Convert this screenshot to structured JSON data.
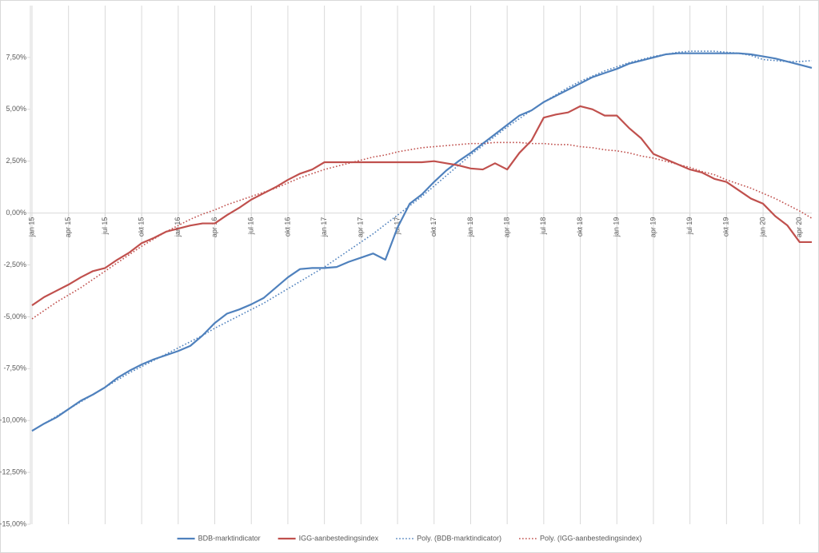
{
  "chart_data": {
    "type": "line",
    "categories": [
      "jan 15",
      null,
      null,
      "apr 15",
      null,
      null,
      "jul 15",
      null,
      null,
      "okt 15",
      null,
      null,
      "jan 16",
      null,
      null,
      "apr 16",
      null,
      null,
      "jul 16",
      null,
      null,
      "okt 16",
      null,
      null,
      "jan 17",
      null,
      null,
      "apr 17",
      null,
      null,
      "jul 17",
      null,
      null,
      "okt 17",
      null,
      null,
      "jan 18",
      null,
      null,
      "apr 18",
      null,
      null,
      "jul 18",
      null,
      null,
      "okt 18",
      null,
      null,
      "jan 19",
      null,
      null,
      "apr 19",
      null,
      null,
      "jul 19",
      null,
      null,
      "okt 19",
      null,
      null,
      "jan 20",
      null,
      null,
      "apr 20",
      null
    ],
    "series": [
      {
        "name": "BDB-marktindicator",
        "color": "#4f81bd",
        "dash": false,
        "values": [
          -10.5,
          -10.15,
          -9.85,
          -9.45,
          -9.05,
          -8.75,
          -8.4,
          -7.95,
          -7.6,
          -7.3,
          -7.05,
          -6.85,
          -6.65,
          -6.4,
          -5.9,
          -5.3,
          -4.85,
          -4.65,
          -4.4,
          -4.1,
          -3.6,
          -3.1,
          -2.7,
          -2.65,
          -2.65,
          -2.6,
          -2.35,
          -2.15,
          -1.95,
          -2.25,
          -0.7,
          0.45,
          0.9,
          1.5,
          2.05,
          2.5,
          2.9,
          3.35,
          3.8,
          4.25,
          4.7,
          4.95,
          5.35,
          5.65,
          5.95,
          6.25,
          6.55,
          6.75,
          6.95,
          7.2,
          7.35,
          7.5,
          7.65,
          7.7,
          7.7,
          7.7,
          7.7,
          7.7,
          7.7,
          7.65,
          7.55,
          7.45,
          7.3,
          7.15,
          7.0
        ]
      },
      {
        "name": "IGG-aanbestedingsindex",
        "color": "#c0504d",
        "dash": false,
        "values": [
          -4.45,
          -4.05,
          -3.75,
          -3.45,
          -3.1,
          -2.8,
          -2.65,
          -2.25,
          -1.9,
          -1.45,
          -1.2,
          -0.9,
          -0.75,
          -0.6,
          -0.5,
          -0.5,
          -0.1,
          0.25,
          0.65,
          0.95,
          1.25,
          1.6,
          1.9,
          2.1,
          2.45,
          2.45,
          2.45,
          2.45,
          2.45,
          2.45,
          2.45,
          2.45,
          2.45,
          2.5,
          2.4,
          2.3,
          2.15,
          2.1,
          2.4,
          2.1,
          2.9,
          3.5,
          4.6,
          4.75,
          4.85,
          5.15,
          5.0,
          4.7,
          4.7,
          4.1,
          3.6,
          2.85,
          2.6,
          2.35,
          2.1,
          1.95,
          1.65,
          1.5,
          1.1,
          0.7,
          0.45,
          -0.15,
          -0.6,
          -1.4,
          -1.4
        ]
      },
      {
        "name": "Poly. (BDB-marktindicator)",
        "color": "#4f81bd",
        "dash": true,
        "values": [
          -10.5,
          -10.15,
          -9.8,
          -9.45,
          -9.1,
          -8.75,
          -8.4,
          -8.05,
          -7.7,
          -7.4,
          -7.1,
          -6.8,
          -6.5,
          -6.2,
          -5.9,
          -5.55,
          -5.25,
          -4.95,
          -4.65,
          -4.35,
          -4.0,
          -3.65,
          -3.3,
          -2.95,
          -2.6,
          -2.2,
          -1.8,
          -1.4,
          -1.0,
          -0.55,
          -0.1,
          0.35,
          0.8,
          1.3,
          1.8,
          2.3,
          2.8,
          3.25,
          3.7,
          4.15,
          4.55,
          4.95,
          5.35,
          5.7,
          6.05,
          6.35,
          6.6,
          6.85,
          7.05,
          7.25,
          7.4,
          7.55,
          7.65,
          7.75,
          7.8,
          7.8,
          7.8,
          7.75,
          7.7,
          7.6,
          7.4,
          7.35,
          7.3,
          7.3,
          7.35
        ]
      },
      {
        "name": "Poly. (IGG-aanbestedingsindex)",
        "color": "#c0504d",
        "dash": true,
        "values": [
          -5.1,
          -4.7,
          -4.3,
          -3.95,
          -3.6,
          -3.2,
          -2.8,
          -2.4,
          -2.0,
          -1.6,
          -1.25,
          -0.9,
          -0.6,
          -0.3,
          -0.05,
          0.15,
          0.4,
          0.6,
          0.8,
          1.0,
          1.2,
          1.45,
          1.7,
          1.9,
          2.1,
          2.25,
          2.4,
          2.55,
          2.7,
          2.8,
          2.95,
          3.05,
          3.15,
          3.2,
          3.25,
          3.3,
          3.35,
          3.35,
          3.4,
          3.4,
          3.4,
          3.35,
          3.35,
          3.3,
          3.3,
          3.2,
          3.15,
          3.05,
          3.0,
          2.9,
          2.75,
          2.65,
          2.5,
          2.35,
          2.2,
          2.0,
          1.85,
          1.6,
          1.4,
          1.2,
          0.95,
          0.7,
          0.4,
          0.1,
          -0.25
        ]
      }
    ],
    "ylim": [
      -15,
      10
    ],
    "yticks": [
      {
        "value": -15,
        "label": "-15,00%"
      },
      {
        "value": -12.5,
        "label": "-12,50%"
      },
      {
        "value": -10,
        "label": "-10,00%"
      },
      {
        "value": -7.5,
        "label": "-7,50%"
      },
      {
        "value": -5,
        "label": "-5,00%"
      },
      {
        "value": -2.5,
        "label": "-2,50%"
      },
      {
        "value": 0,
        "label": "0,00%"
      },
      {
        "value": 2.5,
        "label": "2,50%"
      },
      {
        "value": 5,
        "label": "5,00%"
      },
      {
        "value": 7.5,
        "label": "7,50%"
      }
    ],
    "vertical_grid": true,
    "legend": "bottom"
  }
}
